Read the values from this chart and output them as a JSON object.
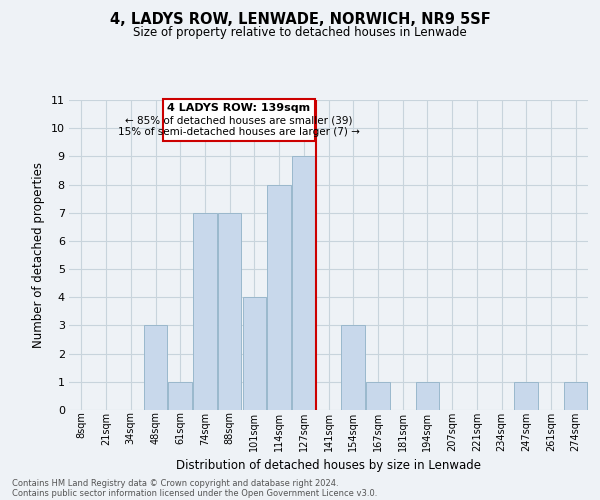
{
  "title": "4, LADYS ROW, LENWADE, NORWICH, NR9 5SF",
  "subtitle": "Size of property relative to detached houses in Lenwade",
  "xlabel": "Distribution of detached houses by size in Lenwade",
  "ylabel": "Number of detached properties",
  "bar_labels": [
    "8sqm",
    "21sqm",
    "34sqm",
    "48sqm",
    "61sqm",
    "74sqm",
    "88sqm",
    "101sqm",
    "114sqm",
    "127sqm",
    "141sqm",
    "154sqm",
    "167sqm",
    "181sqm",
    "194sqm",
    "207sqm",
    "221sqm",
    "234sqm",
    "247sqm",
    "261sqm",
    "274sqm"
  ],
  "bar_values": [
    0,
    0,
    0,
    3,
    1,
    7,
    7,
    4,
    8,
    9,
    0,
    3,
    1,
    0,
    1,
    0,
    0,
    0,
    1,
    0,
    1
  ],
  "bar_color": "#c8d8eb",
  "bar_edge_color": "#9ab8cc",
  "reference_line_x": 9.5,
  "reference_line_color": "#cc0000",
  "ylim": [
    0,
    11
  ],
  "yticks": [
    0,
    1,
    2,
    3,
    4,
    5,
    6,
    7,
    8,
    9,
    10,
    11
  ],
  "annotation_title": "4 LADYS ROW: 139sqm",
  "annotation_line1": "← 85% of detached houses are smaller (39)",
  "annotation_line2": "15% of semi-detached houses are larger (7) →",
  "annotation_box_edge": "#cc0000",
  "footer_line1": "Contains HM Land Registry data © Crown copyright and database right 2024.",
  "footer_line2": "Contains public sector information licensed under the Open Government Licence v3.0.",
  "grid_color": "#c8d4dc",
  "background_color": "#eef2f6"
}
